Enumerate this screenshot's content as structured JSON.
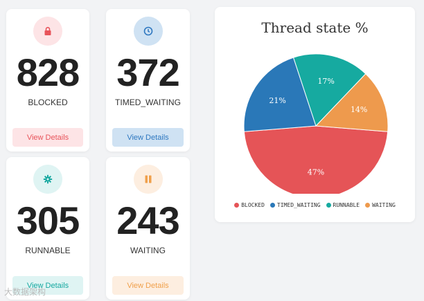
{
  "cards": [
    {
      "count": "828",
      "state": "BLOCKED",
      "button": "View Details",
      "icon": "lock-icon",
      "accent": "#e8535a",
      "icon_bg": "#fde4e6",
      "btn_bg": "#fde4e6",
      "btn_fg": "#e8535a"
    },
    {
      "count": "372",
      "state": "TIMED_WAITING",
      "button": "View Details",
      "icon": "clock-icon",
      "accent": "#2f78c0",
      "icon_bg": "#cfe2f3",
      "btn_bg": "#cfe2f3",
      "btn_fg": "#2f78c0"
    },
    {
      "count": "305",
      "state": "RUNNABLE",
      "button": "View Details",
      "icon": "gear-icon",
      "accent": "#15a8a0",
      "icon_bg": "#dff4f3",
      "btn_bg": "#dff4f3",
      "btn_fg": "#15a8a0"
    },
    {
      "count": "243",
      "state": "WAITING",
      "button": "View Details",
      "icon": "pause-icon",
      "accent": "#f0a04b",
      "icon_bg": "#fdeee0",
      "btn_bg": "#fdeee0",
      "btn_fg": "#f0a04b"
    }
  ],
  "chart_data": {
    "type": "pie",
    "title": "Thread state %",
    "categories": [
      "BLOCKED",
      "TIMED_WAITING",
      "RUNNABLE",
      "WAITING"
    ],
    "values": [
      47,
      21,
      17,
      14
    ],
    "labels": [
      "47%",
      "21%",
      "17%",
      "14%"
    ],
    "colors": [
      "#e55457",
      "#2a78b8",
      "#16aaa0",
      "#ee9a4d"
    ],
    "legend": "bottom"
  },
  "watermark": "大数据架构"
}
